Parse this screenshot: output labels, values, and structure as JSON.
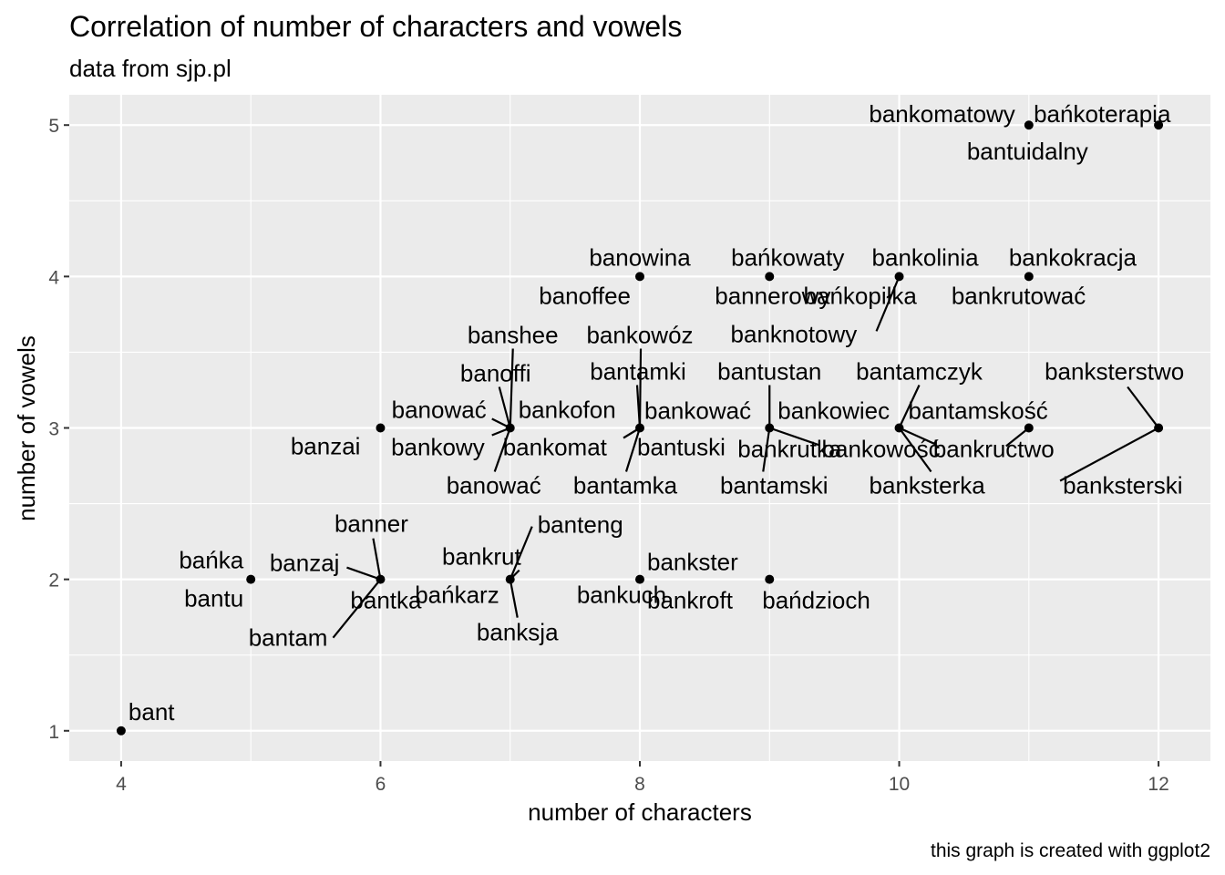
{
  "chart_data": {
    "type": "scatter",
    "title": "Correlation of number of characters and vowels",
    "subtitle": "data from sjp.pl",
    "xlabel": "number of characters",
    "ylabel": "number of vowels",
    "caption": "this graph is created with ggplot2",
    "xlim": [
      3.6,
      12.4
    ],
    "ylim": [
      0.8,
      5.2
    ],
    "x_ticks": [
      4,
      6,
      8,
      10,
      12
    ],
    "y_ticks": [
      1,
      2,
      3,
      4,
      5
    ],
    "grid": true,
    "colors": {
      "panel": "#ebebeb",
      "grid": "#ffffff",
      "point": "#000000",
      "tick_text": "#4d4d4d"
    },
    "points": [
      {
        "x": 4,
        "y": 1,
        "labels": [
          "bant"
        ]
      },
      {
        "x": 5,
        "y": 2,
        "labels": [
          "bańka",
          "bantu"
        ]
      },
      {
        "x": 6,
        "y": 2,
        "labels": [
          "banzaj",
          "banner",
          "bantka",
          "bantam"
        ]
      },
      {
        "x": 6,
        "y": 3,
        "labels": [
          "banzai"
        ]
      },
      {
        "x": 7,
        "y": 2,
        "labels": [
          "bankrut",
          "banteng",
          "bańkarz",
          "banksja"
        ]
      },
      {
        "x": 7,
        "y": 3,
        "labels": [
          "banshee",
          "banoffi",
          "banować",
          "bankofon",
          "bankowy",
          "bankomat",
          "banować"
        ]
      },
      {
        "x": 8,
        "y": 2,
        "labels": [
          "bankster",
          "bankuch",
          "bankroft"
        ]
      },
      {
        "x": 8,
        "y": 3,
        "labels": [
          "bankowóz",
          "bantamki",
          "bankować",
          "bantuski",
          "bantamka"
        ]
      },
      {
        "x": 8,
        "y": 4,
        "labels": [
          "banowina",
          "banoffee"
        ]
      },
      {
        "x": 9,
        "y": 2,
        "labels": [
          "bańdzioch"
        ]
      },
      {
        "x": 9,
        "y": 3,
        "labels": [
          "bantustan",
          "bankowiec",
          "bankrutka",
          "bantamski"
        ]
      },
      {
        "x": 9,
        "y": 4,
        "labels": [
          "bańkowaty",
          "bannerowy"
        ]
      },
      {
        "x": 10,
        "y": 3,
        "labels": [
          "bantamczyk",
          "bantamskość",
          "bankowość",
          "banksterka"
        ]
      },
      {
        "x": 10,
        "y": 4,
        "labels": [
          "bankolinia",
          "bańkopiłka",
          "banknotowy"
        ]
      },
      {
        "x": 11,
        "y": 3,
        "labels": [
          "bankructwo"
        ]
      },
      {
        "x": 11,
        "y": 4,
        "labels": [
          "bankokracja",
          "bankrutować"
        ]
      },
      {
        "x": 11,
        "y": 5,
        "labels": [
          "bankomatowy",
          "bantuidalny"
        ]
      },
      {
        "x": 12,
        "y": 3,
        "labels": [
          "banksterstwo",
          "banksterski"
        ]
      },
      {
        "x": 12,
        "y": 5,
        "labels": [
          "bańkoterapia"
        ]
      }
    ]
  }
}
